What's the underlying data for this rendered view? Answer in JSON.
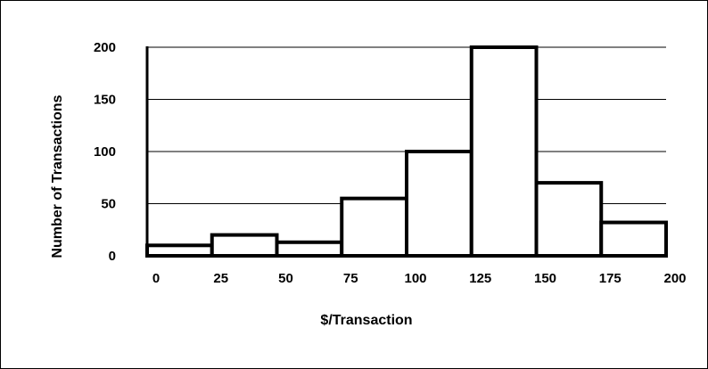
{
  "chart_data": {
    "type": "bar",
    "title": "",
    "xlabel": "$/Transaction",
    "ylabel": "Number of Transactions",
    "bin_edges": [
      0,
      25,
      50,
      75,
      100,
      125,
      150,
      175,
      200
    ],
    "values": [
      10,
      20,
      13,
      55,
      100,
      200,
      70,
      32
    ],
    "xticks": [
      "0",
      "25",
      "50",
      "75",
      "100",
      "125",
      "150",
      "175",
      "200"
    ],
    "yticks": [
      "0",
      "50",
      "100",
      "150",
      "200"
    ],
    "xlim": [
      0,
      200
    ],
    "ylim": [
      0,
      200
    ],
    "grid": "horizontal",
    "legend": "none",
    "bar_fill": "#ffffff",
    "bar_stroke": "#000000"
  }
}
